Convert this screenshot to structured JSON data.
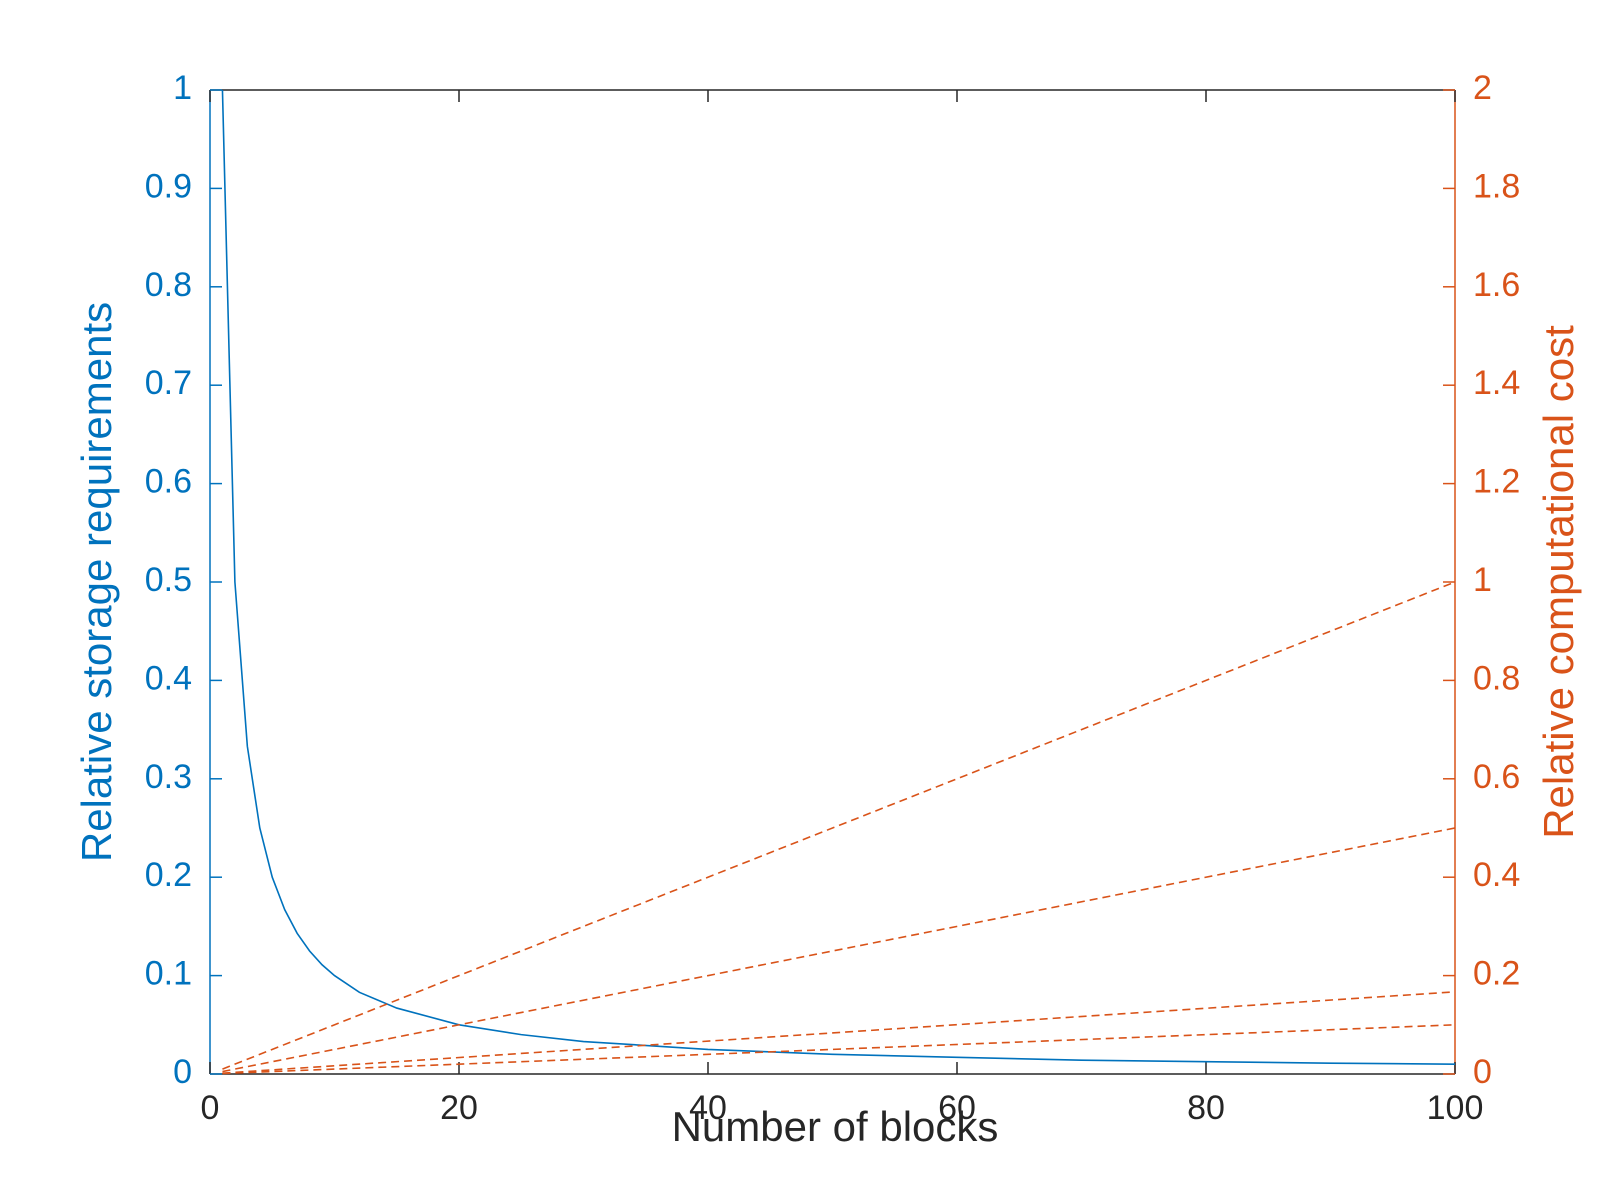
{
  "chart_data": {
    "type": "line",
    "xlabel": "Number of blocks",
    "ylabel": "Relative storage requirements",
    "y2label": "Relative computational cost",
    "xlim": [
      0,
      100
    ],
    "xticks": [
      0,
      20,
      40,
      60,
      80,
      100
    ],
    "ylim": [
      0,
      1
    ],
    "yticks": [
      0,
      0.1,
      0.2,
      0.3,
      0.4,
      0.5,
      0.6,
      0.7,
      0.8,
      0.9,
      1
    ],
    "y2lim": [
      0,
      2
    ],
    "y2ticks": [
      0,
      0.2,
      0.4,
      0.6,
      0.8,
      1,
      1.2,
      1.4,
      1.6,
      1.8,
      2
    ],
    "y_color": "#0072bd",
    "y2_color": "#d95319",
    "series": [
      {
        "color": "#0072bd",
        "style": "solid",
        "x": [
          1,
          2,
          3,
          4,
          5,
          6,
          7,
          8,
          9,
          10,
          12,
          15,
          20,
          25,
          30,
          40,
          50,
          60,
          70,
          80,
          90,
          100
        ],
        "values": [
          1,
          0.5,
          0.333,
          0.25,
          0.2,
          0.167,
          0.143,
          0.125,
          0.111,
          0.1,
          0.083,
          0.067,
          0.05,
          0.04,
          0.033,
          0.025,
          0.02,
          0.017,
          0.014,
          0.0125,
          0.011,
          0.01
        ]
      },
      {
        "color": "#d95319",
        "style": "dashed",
        "axis": "y2",
        "x": [
          1,
          100
        ],
        "values": [
          0.01,
          1
        ]
      },
      {
        "color": "#d95319",
        "style": "dashed",
        "axis": "y2",
        "x": [
          1,
          100
        ],
        "values": [
          0.005,
          0.5
        ]
      },
      {
        "color": "#d95319",
        "style": "dashed",
        "axis": "y2",
        "x": [
          1,
          100
        ],
        "values": [
          0.0017,
          0.167
        ]
      },
      {
        "color": "#d95319",
        "style": "dashed",
        "axis": "y2",
        "x": [
          1,
          100
        ],
        "values": [
          0.001,
          0.1
        ]
      }
    ]
  }
}
